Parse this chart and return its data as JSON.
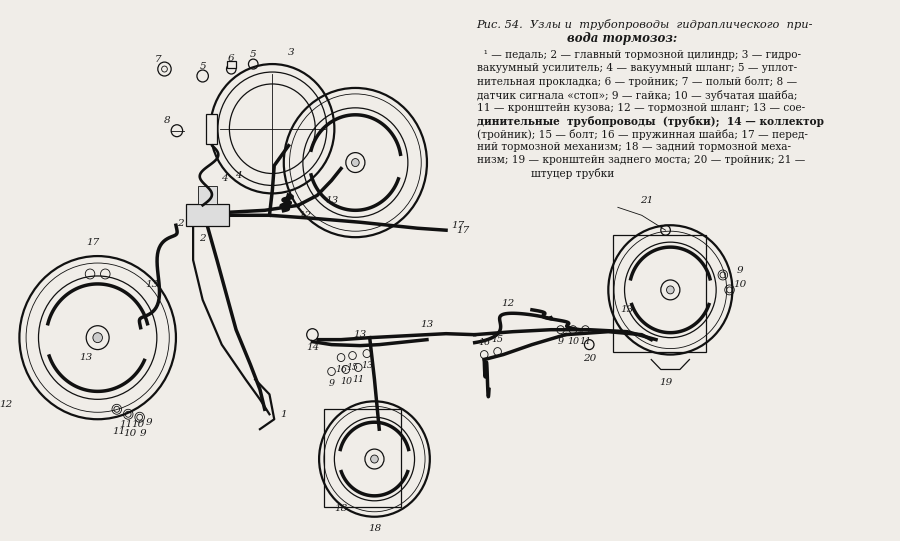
{
  "bg_color": "#f0ede8",
  "text_color": "#1a1a1a",
  "line_color": "#111111",
  "fig_width": 9.0,
  "fig_height": 5.41,
  "title1": "Рис. 54.  Узлы и  трубопроводы  гидраплического  при-",
  "title2": "вода тормозоз:",
  "desc_lines": [
    "  ¹ — педаль; 2 — главный тормозной цилиндр; 3 — гидро-",
    "вакуумный усилитель; 4 — вакуумный шланг; 5 — уплот-",
    "нительная прокладка; 6 — тройник; 7 — полый болт; 8 —",
    "датчик сигнала «стоп»; 9 — гайка; 10 — зубчатая шайба;",
    "11 — кронштейн кузова; 12 — тормозной шланг; 13 — сое-",
    "динительные  трубопроводы  (трубки);  14 — коллектор",
    "(тройник); 15 — болт; 16 — пружинная шайба; 17 — перед-",
    "ний тормозной механизм; 18 — задний тормозной меха-",
    "низм; 19 — кронштейн заднего моста; 20 — тройник; 21 —",
    "                штуцер трубки"
  ]
}
